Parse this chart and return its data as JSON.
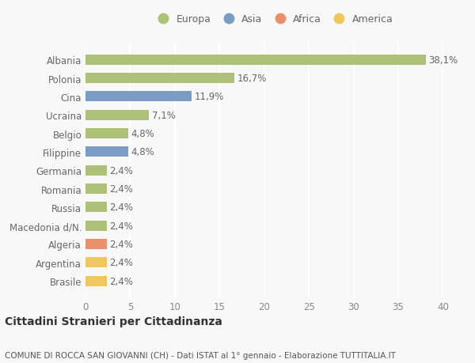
{
  "categories": [
    "Brasile",
    "Argentina",
    "Algeria",
    "Macedonia d/N.",
    "Russia",
    "Romania",
    "Germania",
    "Filippine",
    "Belgio",
    "Ucraina",
    "Cina",
    "Polonia",
    "Albania"
  ],
  "values": [
    2.4,
    2.4,
    2.4,
    2.4,
    2.4,
    2.4,
    2.4,
    4.8,
    4.8,
    7.1,
    11.9,
    16.7,
    38.1
  ],
  "colors": [
    "#f0c75e",
    "#f0c75e",
    "#e8916a",
    "#adc178",
    "#adc178",
    "#adc178",
    "#adc178",
    "#7b9dc4",
    "#adc178",
    "#adc178",
    "#7b9dc4",
    "#adc178",
    "#adc178"
  ],
  "labels": [
    "2,4%",
    "2,4%",
    "2,4%",
    "2,4%",
    "2,4%",
    "2,4%",
    "2,4%",
    "4,8%",
    "4,8%",
    "7,1%",
    "11,9%",
    "16,7%",
    "38,1%"
  ],
  "legend": [
    {
      "label": "Europa",
      "color": "#adc178"
    },
    {
      "label": "Asia",
      "color": "#7b9dc4"
    },
    {
      "label": "Africa",
      "color": "#e8916a"
    },
    {
      "label": "America",
      "color": "#f0c75e"
    }
  ],
  "xlim": [
    0,
    42
  ],
  "xticks": [
    0,
    5,
    10,
    15,
    20,
    25,
    30,
    35,
    40
  ],
  "title": "Cittadini Stranieri per Cittadinanza",
  "subtitle": "COMUNE DI ROCCA SAN GIOVANNI (CH) - Dati ISTAT al 1° gennaio - Elaborazione TUTTITALIA.IT",
  "background_color": "#f8f8f8",
  "grid_color": "#ffffff",
  "bar_height": 0.55,
  "label_fontsize": 8.5,
  "tick_fontsize": 8.5,
  "title_fontsize": 10,
  "subtitle_fontsize": 7.5
}
